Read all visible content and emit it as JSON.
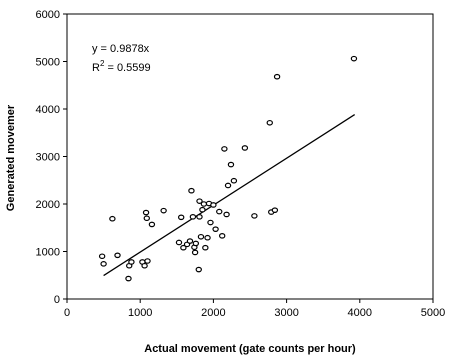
{
  "chart_data": {
    "type": "scatter",
    "xlabel": "Actual movement (gate counts per hour)",
    "ylabel": "Generated movemer",
    "xlim": [
      0,
      5000
    ],
    "ylim": [
      0,
      6000
    ],
    "xticks": [
      0,
      1000,
      2000,
      3000,
      4000,
      5000
    ],
    "yticks": [
      0,
      1000,
      2000,
      3000,
      4000,
      5000,
      6000
    ],
    "grid": false,
    "annotations": {
      "equation": "y = 0.9878x",
      "r2_prefix": "R",
      "r2_sup": "2",
      "r2_value": " = 0.5599"
    },
    "trendline": {
      "slope": 0.9878,
      "x_start": 500,
      "x_end": 3930
    },
    "points": [
      [
        480,
        900
      ],
      [
        500,
        740
      ],
      [
        620,
        1690
      ],
      [
        690,
        920
      ],
      [
        840,
        430
      ],
      [
        850,
        700
      ],
      [
        880,
        780
      ],
      [
        1030,
        780
      ],
      [
        1060,
        700
      ],
      [
        1080,
        1820
      ],
      [
        1090,
        1700
      ],
      [
        1100,
        800
      ],
      [
        1160,
        1570
      ],
      [
        1320,
        1860
      ],
      [
        1530,
        1190
      ],
      [
        1560,
        1720
      ],
      [
        1590,
        1080
      ],
      [
        1640,
        1150
      ],
      [
        1680,
        1220
      ],
      [
        1700,
        2280
      ],
      [
        1720,
        1730
      ],
      [
        1740,
        1090
      ],
      [
        1750,
        980
      ],
      [
        1760,
        1170
      ],
      [
        1800,
        620
      ],
      [
        1810,
        2060
      ],
      [
        1810,
        1730
      ],
      [
        1830,
        1310
      ],
      [
        1850,
        1880
      ],
      [
        1870,
        2000
      ],
      [
        1890,
        1080
      ],
      [
        1920,
        1290
      ],
      [
        1940,
        2010
      ],
      [
        1960,
        1610
      ],
      [
        2000,
        1980
      ],
      [
        2030,
        1470
      ],
      [
        2080,
        1840
      ],
      [
        2120,
        1330
      ],
      [
        2150,
        3160
      ],
      [
        2180,
        1780
      ],
      [
        2200,
        2390
      ],
      [
        2240,
        2830
      ],
      [
        2280,
        2490
      ],
      [
        2430,
        3180
      ],
      [
        2560,
        1750
      ],
      [
        2770,
        3710
      ],
      [
        2790,
        1830
      ],
      [
        2840,
        1870
      ],
      [
        2870,
        4680
      ],
      [
        3920,
        5060
      ]
    ]
  }
}
